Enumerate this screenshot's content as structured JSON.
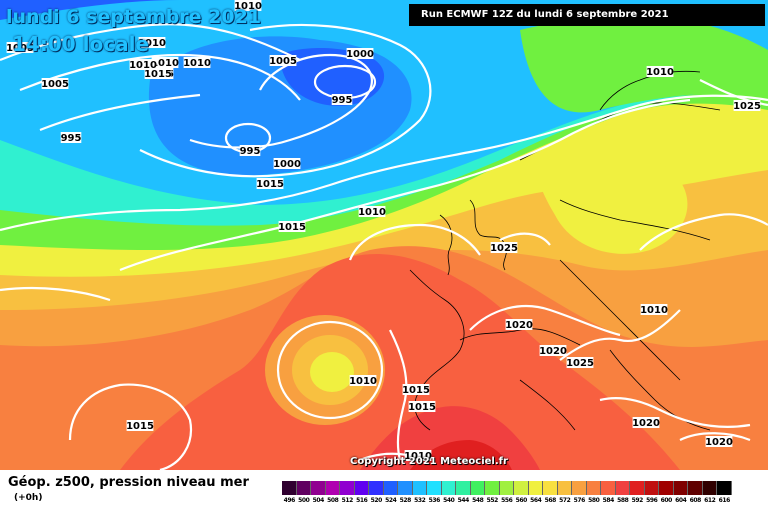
{
  "title": {
    "date": "lundi 6 septembre 2021",
    "time": "14:00 locale"
  },
  "run_label": "Run ECMWF 12Z du lundi 6 septembre 2021",
  "copyright": "Copyright 2021 Meteociel.fr",
  "footer": {
    "title": "Géop. z500, pression niveau mer",
    "subtitle": "(+0h)"
  },
  "scale": {
    "labels": [
      "496",
      "500",
      "504",
      "508",
      "512",
      "516",
      "520",
      "524",
      "528",
      "532",
      "536",
      "540",
      "544",
      "548",
      "552",
      "556",
      "560",
      "564",
      "568",
      "572",
      "576",
      "580",
      "584",
      "588",
      "592",
      "596",
      "600",
      "604",
      "608",
      "612",
      "616"
    ],
    "colors": [
      "#300030",
      "#600060",
      "#900090",
      "#b000b0",
      "#9000d0",
      "#6000f0",
      "#3030ff",
      "#2060ff",
      "#2090ff",
      "#20c0ff",
      "#20e0ff",
      "#30f0d0",
      "#30f0a0",
      "#40f060",
      "#70f040",
      "#a0f040",
      "#d0f040",
      "#f0f040",
      "#f8e040",
      "#f8c040",
      "#f8a040",
      "#f88040",
      "#f86040",
      "#f04040",
      "#e02020",
      "#c01010",
      "#a00000",
      "#800000",
      "#600000",
      "#300000",
      "#000000"
    ]
  },
  "isobar_labels": [
    {
      "text": "1010"
    },
    {
      "text": "1005"
    },
    {
      "text": "1010"
    },
    {
      "text": "1010"
    },
    {
      "text": "1010"
    },
    {
      "text": "1015"
    },
    {
      "text": "1010"
    },
    {
      "text": "1015"
    },
    {
      "text": "1005"
    },
    {
      "text": "1000"
    },
    {
      "text": "995"
    },
    {
      "text": "1005"
    },
    {
      "text": "995"
    },
    {
      "text": "995"
    },
    {
      "text": "1000"
    },
    {
      "text": "1015"
    },
    {
      "text": "1010"
    },
    {
      "text": "1015"
    },
    {
      "text": "1010"
    },
    {
      "text": "1025"
    },
    {
      "text": "1025"
    },
    {
      "text": "1020"
    },
    {
      "text": "1020"
    },
    {
      "text": "1025"
    },
    {
      "text": "1010"
    },
    {
      "text": "1015"
    },
    {
      "text": "1015"
    },
    {
      "text": "1020"
    },
    {
      "text": "1020"
    },
    {
      "text": "1015"
    },
    {
      "text": "1010"
    },
    {
      "text": "1010"
    }
  ]
}
